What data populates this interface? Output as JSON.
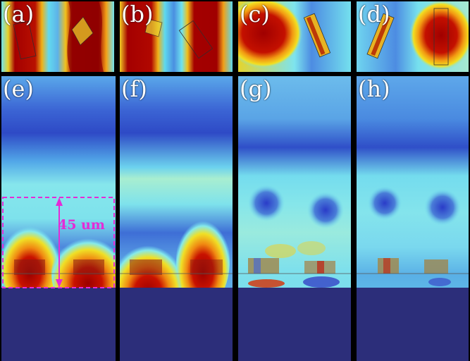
{
  "panels": {
    "a": {
      "label": "(a)"
    },
    "b": {
      "label": "(b)"
    },
    "c": {
      "label": "(c)"
    },
    "d": {
      "label": "(d)"
    },
    "e": {
      "label": "(e)"
    },
    "f": {
      "label": "(f)"
    },
    "g": {
      "label": "(g)"
    },
    "h": {
      "label": "(h)"
    }
  },
  "annotation": {
    "height_label": "45 um"
  },
  "colors": {
    "background": "#000000",
    "substrate": "#2c2e7a",
    "field_low": "#2a3cc8",
    "field_mid": "#72e6f2",
    "field_high": "#8a0000",
    "annotation": "#e42bd6"
  }
}
